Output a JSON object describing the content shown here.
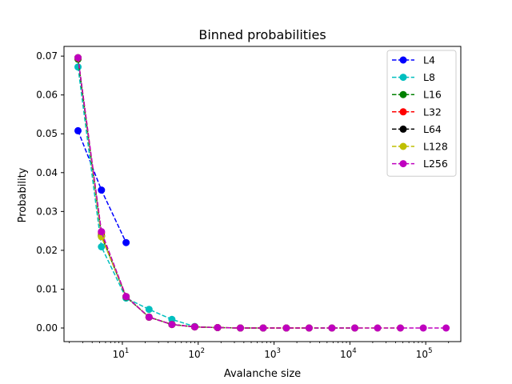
{
  "chart_data": {
    "type": "line",
    "title": "Binned probabilities",
    "xlabel": "Avalanche size",
    "ylabel": "Probability",
    "xscale": "log",
    "xlim": [
      1.7,
      290000
    ],
    "ylim": [
      -0.0035,
      0.0725
    ],
    "x_ticks": [
      {
        "value": 10,
        "base": "10",
        "exp": "1"
      },
      {
        "value": 100,
        "base": "10",
        "exp": "2"
      },
      {
        "value": 1000,
        "base": "10",
        "exp": "3"
      },
      {
        "value": 10000,
        "base": "10",
        "exp": "4"
      },
      {
        "value": 100000,
        "base": "10",
        "exp": "5"
      }
    ],
    "y_ticks": [
      "0.00",
      "0.01",
      "0.02",
      "0.03",
      "0.04",
      "0.05",
      "0.06",
      "0.07"
    ],
    "y_tick_values": [
      0,
      0.01,
      0.02,
      0.03,
      0.04,
      0.05,
      0.06,
      0.07
    ],
    "legend_position": "top-right",
    "line_style": "dashed",
    "marker": "circle",
    "grid": false,
    "series": [
      {
        "name": "L4",
        "color": "#0000ff",
        "x": [
          2.6,
          5.3,
          11.2
        ],
        "values": [
          0.0508,
          0.0355,
          0.022
        ]
      },
      {
        "name": "L8",
        "color": "#00bfbf",
        "x": [
          2.6,
          5.3,
          11.2,
          22.5,
          45,
          90
        ],
        "values": [
          0.0672,
          0.0209,
          0.0077,
          0.0048,
          0.0022,
          0.0004
        ]
      },
      {
        "name": "L16",
        "color": "#008000",
        "x": [
          2.6,
          5.3,
          11.2,
          22.5,
          45,
          90,
          180,
          360,
          720
        ],
        "values": [
          0.0692,
          0.0238,
          0.008,
          0.0028,
          0.0009,
          0.0003,
          0.0001,
          0.0,
          0.0
        ]
      },
      {
        "name": "L32",
        "color": "#ff0000",
        "x": [
          2.6,
          5.3,
          11.2,
          22.5,
          45,
          90,
          180,
          360,
          720,
          1450,
          2900
        ],
        "values": [
          0.0695,
          0.0245,
          0.0081,
          0.0028,
          0.0009,
          0.0003,
          0.0001,
          0.0,
          0.0,
          0.0,
          0.0
        ]
      },
      {
        "name": "L64",
        "color": "#000000",
        "x": [
          2.6,
          5.3,
          11.2,
          22.5,
          45,
          90,
          180,
          360,
          720,
          1450,
          2900,
          5800,
          11600
        ],
        "values": [
          0.0696,
          0.0236,
          0.0081,
          0.0028,
          0.0009,
          0.0003,
          0.0001,
          0.0,
          0.0,
          0.0,
          0.0,
          0.0,
          0.0
        ]
      },
      {
        "name": "L128",
        "color": "#bfbf00",
        "x": [
          2.6,
          5.3,
          11.2,
          22.5,
          45,
          90,
          180,
          360,
          720,
          1450,
          2900,
          5800,
          11600,
          23200,
          46400
        ],
        "values": [
          0.0696,
          0.0235,
          0.0081,
          0.0028,
          0.0009,
          0.0003,
          0.0001,
          0.0,
          0.0,
          0.0,
          0.0,
          0.0,
          0.0,
          0.0,
          0.0
        ]
      },
      {
        "name": "L256",
        "color": "#bf00bf",
        "x": [
          2.6,
          5.3,
          11.2,
          22.5,
          45,
          90,
          180,
          360,
          720,
          1450,
          2900,
          5800,
          11600,
          23200,
          46400,
          92800,
          185600
        ],
        "values": [
          0.0696,
          0.0248,
          0.0081,
          0.0028,
          0.0009,
          0.0003,
          0.0001,
          0.0,
          0.0,
          0.0,
          0.0,
          0.0,
          0.0,
          0.0,
          0.0,
          0.0,
          0.0
        ]
      }
    ]
  }
}
